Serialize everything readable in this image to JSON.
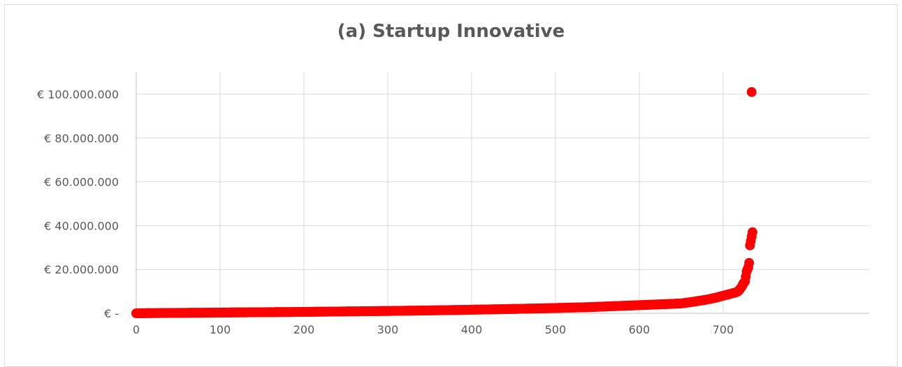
{
  "chart_data": {
    "type": "scatter",
    "title": "(a) Startup Innovative",
    "xlabel": "",
    "ylabel": "",
    "xlim": [
      0,
      750
    ],
    "ylim": [
      0,
      110000000
    ],
    "x_ticks": [
      0,
      100,
      200,
      300,
      400,
      500,
      600,
      700
    ],
    "x_tick_labels": [
      "0",
      "100",
      "200",
      "300",
      "400",
      "500",
      "600",
      "700"
    ],
    "y_ticks": [
      0,
      20000000,
      40000000,
      60000000,
      80000000,
      100000000
    ],
    "y_tick_labels": [
      "€ -",
      "€ 20.000.000",
      "€ 40.000.000",
      "€ 60.000.000",
      "€ 80.000.000",
      "€ 100.000.000"
    ],
    "grid": true,
    "legend": "none",
    "marker_color": "#ff0000",
    "series": [
      {
        "points": [
          [
            0,
            10000
          ],
          [
            10,
            40000
          ],
          [
            20,
            80000
          ],
          [
            30,
            120000
          ],
          [
            40,
            150000
          ],
          [
            50,
            180000
          ],
          [
            60,
            200000
          ],
          [
            70,
            230000
          ],
          [
            80,
            260000
          ],
          [
            90,
            290000
          ],
          [
            100,
            330000
          ],
          [
            110,
            360000
          ],
          [
            120,
            390000
          ],
          [
            130,
            420000
          ],
          [
            140,
            450000
          ],
          [
            150,
            480000
          ],
          [
            160,
            510000
          ],
          [
            170,
            540000
          ],
          [
            180,
            570000
          ],
          [
            190,
            600000
          ],
          [
            200,
            640000
          ],
          [
            210,
            680000
          ],
          [
            220,
            720000
          ],
          [
            230,
            760000
          ],
          [
            240,
            800000
          ],
          [
            250,
            840000
          ],
          [
            260,
            880000
          ],
          [
            270,
            920000
          ],
          [
            280,
            960000
          ],
          [
            290,
            1000000
          ],
          [
            300,
            1050000
          ],
          [
            310,
            1100000
          ],
          [
            320,
            1150000
          ],
          [
            330,
            1200000
          ],
          [
            340,
            1250000
          ],
          [
            350,
            1310000
          ],
          [
            360,
            1370000
          ],
          [
            370,
            1430000
          ],
          [
            380,
            1490000
          ],
          [
            390,
            1550000
          ],
          [
            400,
            1620000
          ],
          [
            410,
            1690000
          ],
          [
            420,
            1760000
          ],
          [
            430,
            1830000
          ],
          [
            440,
            1900000
          ],
          [
            450,
            1980000
          ],
          [
            460,
            2060000
          ],
          [
            470,
            2140000
          ],
          [
            480,
            2220000
          ],
          [
            490,
            2300000
          ],
          [
            500,
            2400000
          ],
          [
            510,
            2500000
          ],
          [
            520,
            2600000
          ],
          [
            530,
            2700000
          ],
          [
            540,
            2800000
          ],
          [
            550,
            2950000
          ],
          [
            560,
            3100000
          ],
          [
            570,
            3250000
          ],
          [
            580,
            3400000
          ],
          [
            590,
            3550000
          ],
          [
            600,
            3700000
          ],
          [
            610,
            3850000
          ],
          [
            620,
            4000000
          ],
          [
            630,
            4150000
          ],
          [
            640,
            4300000
          ],
          [
            650,
            4500000
          ],
          [
            660,
            5000000
          ],
          [
            670,
            5600000
          ],
          [
            680,
            6200000
          ],
          [
            690,
            7000000
          ],
          [
            700,
            8000000
          ],
          [
            705,
            8500000
          ],
          [
            710,
            9000000
          ],
          [
            715,
            9500000
          ],
          [
            718,
            10000000
          ],
          [
            720,
            11000000
          ],
          [
            722,
            12000000
          ],
          [
            724,
            13500000
          ],
          [
            726,
            14500000
          ],
          [
            728,
            19000000
          ],
          [
            730,
            21000000
          ],
          [
            731,
            23000000
          ],
          [
            732,
            31000000
          ],
          [
            733,
            33000000
          ],
          [
            734,
            35000000
          ],
          [
            735,
            37000000
          ],
          [
            734,
            101000000
          ]
        ]
      }
    ]
  }
}
